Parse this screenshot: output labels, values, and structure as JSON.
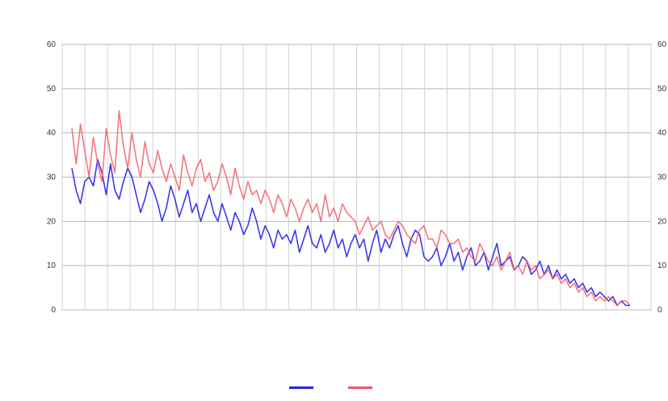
{
  "chart_data": {
    "type": "line",
    "title": "",
    "xlabel": "",
    "ylabel": "",
    "ylim": [
      0,
      60
    ],
    "y_ticks": [
      0,
      10,
      20,
      30,
      40,
      50,
      60
    ],
    "grid": true,
    "legend_position": "bottom",
    "series": [
      {
        "name": "",
        "color": "#2a22e8",
        "values": [
          32,
          27,
          24,
          29,
          30,
          28,
          34,
          31,
          26,
          33,
          27,
          25,
          29,
          32,
          30,
          26,
          22,
          25,
          29,
          27,
          24,
          20,
          23,
          28,
          25,
          21,
          24,
          27,
          22,
          24,
          20,
          23,
          26,
          22,
          20,
          24,
          21,
          18,
          22,
          20,
          17,
          19,
          23,
          20,
          16,
          19,
          17,
          14,
          18,
          16,
          17,
          15,
          18,
          13,
          16,
          19,
          15,
          14,
          17,
          13,
          15,
          18,
          14,
          16,
          12,
          15,
          17,
          14,
          16,
          11,
          15,
          18,
          13,
          16,
          14,
          17,
          19,
          15,
          12,
          16,
          18,
          17,
          12,
          11,
          12,
          14,
          10,
          12,
          15,
          11,
          13,
          9,
          12,
          14,
          10,
          11,
          13,
          9,
          12,
          15,
          10,
          11,
          12,
          9,
          10,
          12,
          11,
          8,
          9,
          11,
          8,
          10,
          7,
          9,
          7,
          8,
          6,
          7,
          5,
          6,
          4,
          5,
          3,
          4,
          3,
          2,
          3,
          1,
          2,
          1,
          1
        ]
      },
      {
        "name": "",
        "color": "#f0565f",
        "values": [
          41,
          33,
          42,
          36,
          30,
          39,
          33,
          29,
          41,
          35,
          31,
          45,
          37,
          32,
          40,
          34,
          30,
          38,
          33,
          31,
          36,
          32,
          29,
          33,
          30,
          27,
          35,
          31,
          28,
          32,
          34,
          29,
          31,
          27,
          29,
          33,
          30,
          26,
          32,
          28,
          25,
          29,
          26,
          27,
          24,
          27,
          25,
          22,
          26,
          24,
          21,
          25,
          23,
          20,
          23,
          25,
          22,
          24,
          20,
          26,
          21,
          23,
          20,
          24,
          22,
          21,
          20,
          17,
          19,
          21,
          18,
          19,
          20,
          17,
          16,
          18,
          20,
          19,
          17,
          16,
          15,
          18,
          19,
          16,
          16,
          14,
          18,
          17,
          15,
          15,
          16,
          13,
          14,
          12,
          11,
          15,
          13,
          11,
          10,
          12,
          9,
          11,
          13,
          9,
          10,
          8,
          11,
          9,
          10,
          7,
          8,
          9,
          7,
          8,
          6,
          7,
          5,
          6,
          4,
          5,
          3,
          4,
          2,
          3,
          2,
          3,
          2,
          1,
          2,
          2,
          1
        ]
      }
    ]
  }
}
